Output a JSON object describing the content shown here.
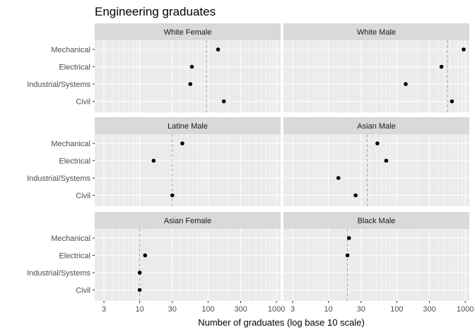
{
  "chart_data": {
    "type": "scatter",
    "title": "Engineering graduates",
    "xlabel": "Number of graduates (log base 10 scale)",
    "ylabel": "",
    "x_scale": "log10",
    "xlim": [
      2.2,
      1150
    ],
    "x_ticks": [
      3,
      10,
      30,
      100,
      300,
      1000
    ],
    "x_tick_labels": [
      "3",
      "10",
      "30",
      "100",
      "300",
      "1000"
    ],
    "categories": [
      "Mechanical",
      "Electrical",
      "Industrial/Systems",
      "Civil"
    ],
    "grid": true,
    "legend": "none",
    "reference_line": "dashed vertical line per panel",
    "colors": {
      "panel_background": "#ebebeb",
      "strip_background": "#d9d9d9",
      "grid": "#ffffff",
      "point": "#000000",
      "reference_line": "#a6a6a6"
    },
    "panels": [
      {
        "name": "White Female",
        "values": [
          140,
          58,
          55,
          170
        ],
        "ref": 95
      },
      {
        "name": "White Male",
        "values": [
          950,
          450,
          135,
          640
        ],
        "ref": 550
      },
      {
        "name": "Latine Male",
        "values": [
          42,
          16,
          null,
          30
        ],
        "ref": 30
      },
      {
        "name": "Asian Male",
        "values": [
          52,
          70,
          14,
          25
        ],
        "ref": 37
      },
      {
        "name": "Asian Female",
        "values": [
          null,
          12,
          10,
          10
        ],
        "ref": 10
      },
      {
        "name": "Black Male",
        "values": [
          20,
          19,
          null,
          null
        ],
        "ref": 19
      }
    ]
  }
}
